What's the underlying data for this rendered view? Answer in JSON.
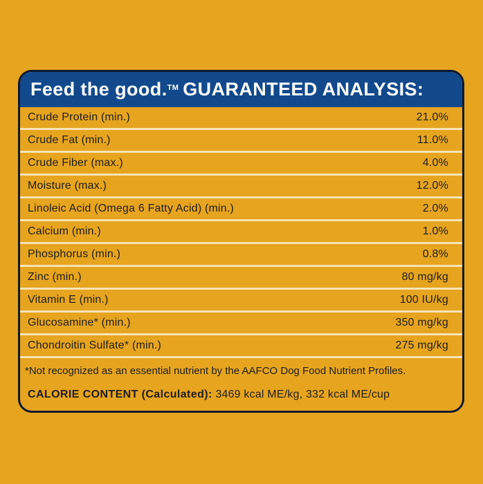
{
  "header": {
    "brand": "Feed the good.",
    "trademark": "TM",
    "title": "GUARANTEED ANALYSIS:"
  },
  "rows": [
    {
      "label": "Crude Protein (min.)",
      "value": "21.0%"
    },
    {
      "label": "Crude Fat (min.)",
      "value": "11.0%"
    },
    {
      "label": "Crude Fiber (max.)",
      "value": "4.0%"
    },
    {
      "label": "Moisture (max.)",
      "value": "12.0%"
    },
    {
      "label": "Linoleic Acid (Omega 6 Fatty Acid) (min.)",
      "value": "2.0%"
    },
    {
      "label": "Calcium (min.)",
      "value": "1.0%"
    },
    {
      "label": "Phosphorus (min.)",
      "value": "0.8%"
    },
    {
      "label": "Zinc (min.)",
      "value": "80 mg/kg"
    },
    {
      "label": "Vitamin E (min.)",
      "value": "100 IU/kg"
    },
    {
      "label": "Glucosamine* (min.)",
      "value": "350 mg/kg"
    },
    {
      "label": "Chondroitin Sulfate* (min.)",
      "value": "275 mg/kg"
    }
  ],
  "footnote": "*Not recognized as an essential nutrient by the AAFCO Dog Food Nutrient Profiles.",
  "calorie": {
    "label": "CALORIE CONTENT (Calculated):",
    "value": "3469 kcal ME/kg, 332 kcal ME/cup"
  },
  "colors": {
    "background": "#E6A41F",
    "header": "#12498D",
    "border": "#0E1830",
    "row_divider": "#F7E4B4",
    "text": "#1E1E1E"
  }
}
